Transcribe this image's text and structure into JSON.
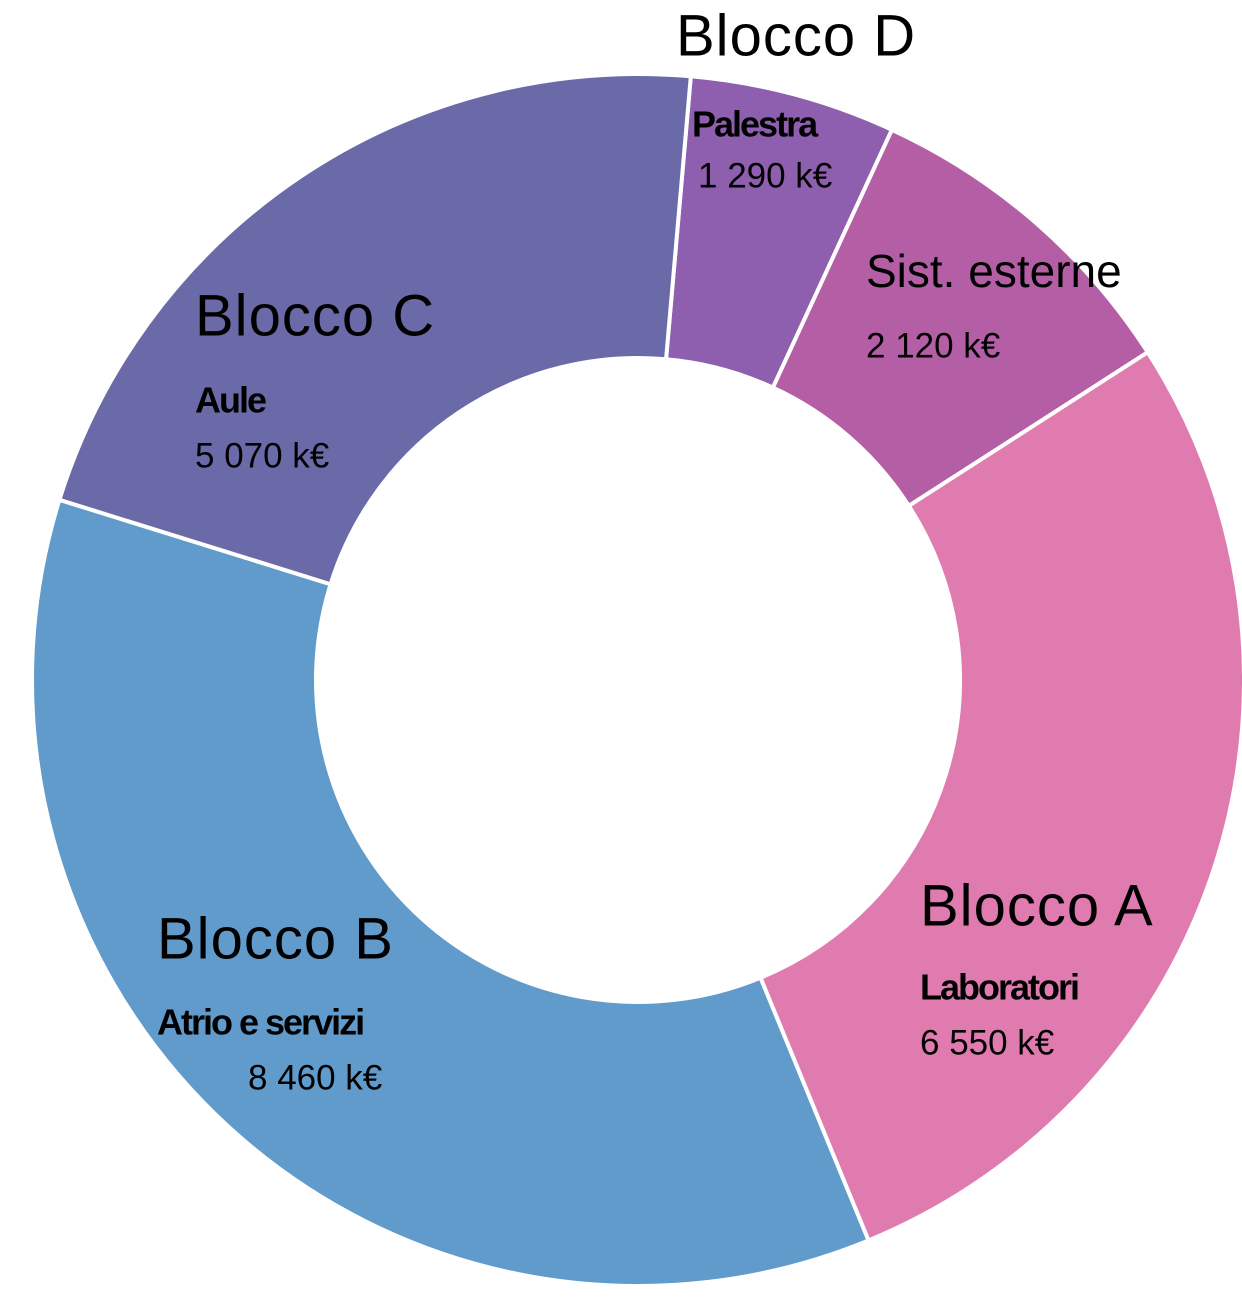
{
  "chart_data": {
    "type": "donut",
    "slices": [
      {
        "group": "Blocco D",
        "name": "Palestra",
        "value": 1290,
        "value_label": "1 290 k€",
        "color": "#8e5fae"
      },
      {
        "name": "Sist. esterne",
        "value": 2120,
        "value_label": "2 120 k€",
        "color": "#b45ea6"
      },
      {
        "group": "Blocco A",
        "name": "Laboratori",
        "value": 6550,
        "value_label": "6 550 k€",
        "color": "#e07bb0"
      },
      {
        "group": "Blocco B",
        "name": "Atrio e servizi",
        "value": 8460,
        "value_label": "8 460 k€",
        "color": "#619bcb"
      },
      {
        "group": "Blocco C",
        "name": "Aule",
        "value": 5070,
        "value_label": "5 070 k€",
        "color": "#6b6aa8"
      }
    ]
  }
}
